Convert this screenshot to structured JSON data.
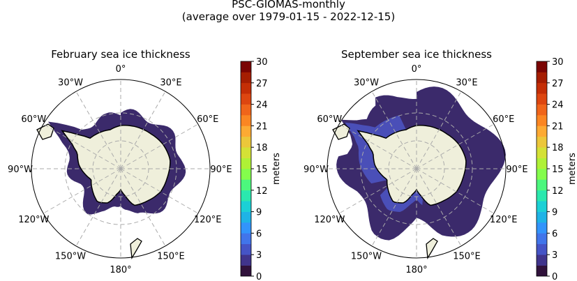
{
  "figure": {
    "title_line1": "PSC-GIOMAS-monthly",
    "title_line2": "(average over 1979-01-15 - 2022-12-15)"
  },
  "maps": [
    {
      "title": "February sea ice thickness",
      "label": "meters"
    },
    {
      "title": "September sea ice thickness",
      "label": "meters"
    }
  ],
  "lon_labels": [
    "0°",
    "30°E",
    "60°E",
    "90°E",
    "120°E",
    "150°E",
    "180°",
    "150°W",
    "120°W",
    "90°W",
    "60°W",
    "30°W"
  ],
  "colorbar": {
    "colormap": "turbo",
    "range": [
      0,
      30
    ],
    "levels": 20,
    "ticks": [
      "0",
      "3",
      "6",
      "9",
      "12",
      "15",
      "18",
      "21",
      "24",
      "27",
      "30"
    ],
    "colors": [
      "#30123b",
      "#40348c",
      "#4554c6",
      "#4175ea",
      "#3294fb",
      "#1fb3e6",
      "#1bd0d5",
      "#2ae8ae",
      "#4cf77d",
      "#84fd4c",
      "#aff136",
      "#d4e136",
      "#ecc73a",
      "#fdaa33",
      "#fb8622",
      "#f0651a",
      "#dd4610",
      "#c42e06",
      "#a51d02",
      "#7a0403"
    ]
  },
  "colors": {
    "land": "#efefdb",
    "ice_low": "#3b2a6b",
    "ice_mid": "#4a4fb8"
  }
}
